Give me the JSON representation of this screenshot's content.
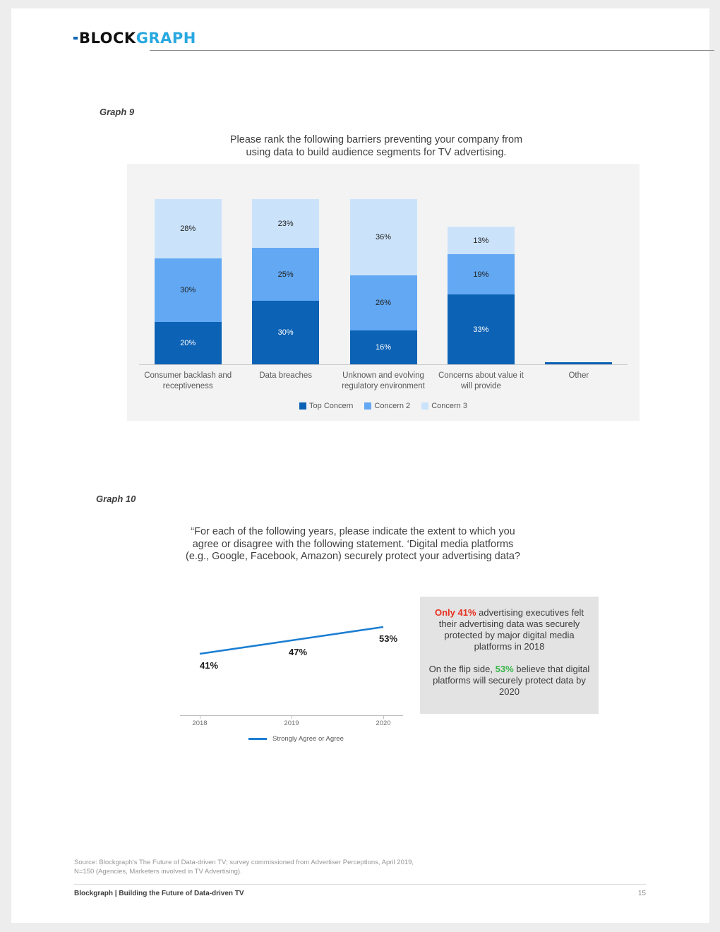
{
  "page": {
    "logo_block": "BLOCK",
    "logo_graph": "GRAPH",
    "brand_blue": "#29a8e0"
  },
  "graph9": {
    "label": "Graph 9",
    "title": "Please rank the following barriers preventing your company from\nusing data to build audience segments for TV advertising."
  },
  "graph10": {
    "label": "Graph 10",
    "title": "“For each of the following years, please indicate the extent to which you\nagree or disagree with the following statement. ‘Digital media platforms\n(e.g., Google, Facebook, Amazon) securely protect your advertising data?"
  },
  "callout": {
    "p1_lead": "Only 41%",
    "p1_text": " advertising executives felt their advertising data was securely protected by major digital media platforms in 2018",
    "p2_before": "On the flip side, ",
    "p2_lead": "53%",
    "p2_after": " believe that digital platforms will securely protect data by 2020",
    "lead_red": "#e8301e",
    "lead_green": "#39b54a"
  },
  "footer": {
    "source": "Source: Blockgraph's The Future of Data-driven TV; survey commissioned from Advertiser Perceptions, April 2019,\nN=150 (Agencies, Marketers involved in TV Advertising).",
    "brand": "Blockgraph | Building the Future of Data-driven TV",
    "page_number": "15"
  },
  "chart_data": [
    {
      "type": "bar",
      "stacked": true,
      "title": "Please rank the following barriers preventing your company from using data to build audience segments for TV advertising.",
      "categories": [
        "Consumer backlash and receptiveness",
        "Data breaches",
        "Unknown and evolving regulatory environment",
        "Concerns about value it will provide",
        "Other"
      ],
      "series": [
        {
          "name": "Top Concern",
          "color": "#0c62b5",
          "label_color": "#ffffff",
          "values": [
            20,
            30,
            16,
            33,
            1
          ]
        },
        {
          "name": "Concern 2",
          "color": "#62a8f3",
          "label_color": "#222222",
          "values": [
            30,
            25,
            26,
            19,
            0
          ]
        },
        {
          "name": "Concern 3",
          "color": "#cbe3fa",
          "label_color": "#222222",
          "values": [
            28,
            23,
            36,
            13,
            0
          ]
        }
      ],
      "value_suffix": "%",
      "legend_position": "bottom",
      "background": "#f3f3f3"
    },
    {
      "type": "line",
      "title": "“For each of the following years, please indicate the extent to which you agree or disagree with the following statement. ‘Digital media platforms (e.g., Google, Facebook, Amazon) securely protect your advertising data?",
      "x": [
        "2018",
        "2019",
        "2020"
      ],
      "series": [
        {
          "name": "Strongly Agree or Agree",
          "color": "#1b7ed2",
          "values": [
            41,
            47,
            53
          ]
        }
      ],
      "value_suffix": "%",
      "legend_position": "bottom"
    }
  ]
}
